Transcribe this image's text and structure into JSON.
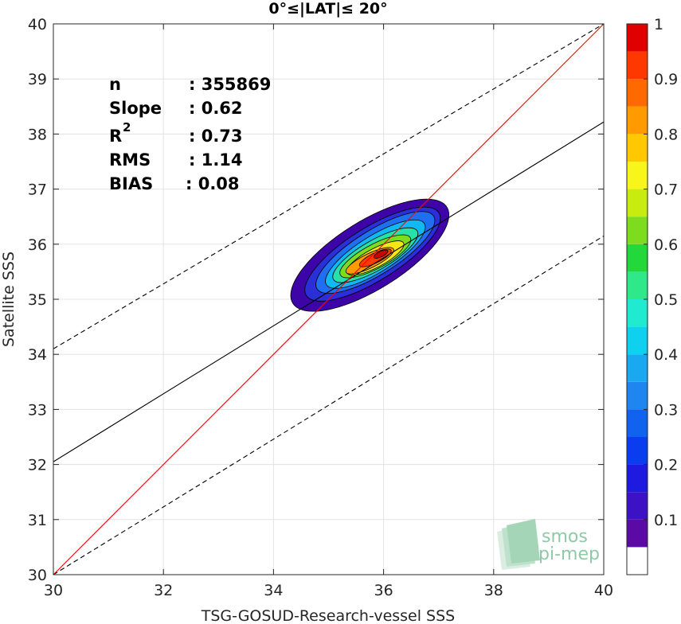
{
  "chart_data": {
    "type": "contour",
    "title": "0°≤|LAT|≤ 20°",
    "xlabel": "TSG-GOSUD-Research-vessel SSS",
    "ylabel": "Satellite SSS",
    "xlim": [
      30,
      40
    ],
    "ylim": [
      30,
      40
    ],
    "xticks": [
      "30",
      "32",
      "34",
      "36",
      "38",
      "40"
    ],
    "yticks": [
      "30",
      "31",
      "32",
      "33",
      "34",
      "35",
      "36",
      "37",
      "38",
      "39",
      "40"
    ],
    "grid": true,
    "stats": {
      "n_label": "n",
      "n_value": ": 355869",
      "slope_label": "Slope",
      "slope_value": ": 0.62",
      "r2_label": "R",
      "r2_sup": "2",
      "r2_value": ": 0.73",
      "rms_label": "RMS",
      "rms_value": ": 1.14",
      "bias_label": "BIAS",
      "bias_value": ": 0.08"
    },
    "lines": {
      "identity": {
        "points": [
          [
            30,
            30
          ],
          [
            40,
            40
          ]
        ],
        "color": "#ff0000"
      },
      "fit": {
        "points": [
          [
            30,
            32.05
          ],
          [
            40,
            38.22
          ]
        ],
        "color": "#000000"
      },
      "upper_bound": {
        "points": [
          [
            30,
            34.1
          ],
          [
            40,
            40
          ]
        ],
        "color": "#000000",
        "dash": true
      },
      "lower_bound": {
        "points": [
          [
            30,
            30
          ],
          [
            40,
            36.15
          ]
        ],
        "color": "#000000",
        "dash": true
      }
    },
    "density_contours": [
      {
        "level": 0.05,
        "color": "#3d05a8",
        "center": [
          35.75,
          35.8
        ],
        "half_major": 1.65,
        "half_minor": 0.62,
        "angle_deg": 32
      },
      {
        "level": 0.15,
        "color": "#2a2fd8",
        "center": [
          35.8,
          35.82
        ],
        "half_major": 1.42,
        "half_minor": 0.48,
        "angle_deg": 32
      },
      {
        "level": 0.25,
        "color": "#1f6ff0",
        "center": [
          35.85,
          35.85
        ],
        "half_major": 1.25,
        "half_minor": 0.4,
        "angle_deg": 32
      },
      {
        "level": 0.35,
        "color": "#12b8f2",
        "center": [
          35.85,
          35.82
        ],
        "half_major": 1.05,
        "half_minor": 0.33,
        "angle_deg": 32
      },
      {
        "level": 0.45,
        "color": "#28e0a8",
        "center": [
          35.85,
          35.8
        ],
        "half_major": 0.88,
        "half_minor": 0.27,
        "angle_deg": 30
      },
      {
        "level": 0.55,
        "color": "#7ddc1e",
        "center": [
          35.85,
          35.78
        ],
        "half_major": 0.72,
        "half_minor": 0.22,
        "angle_deg": 28
      },
      {
        "level": 0.65,
        "color": "#f5e61a",
        "center": [
          35.85,
          35.75
        ],
        "half_major": 0.58,
        "half_minor": 0.17,
        "angle_deg": 28
      },
      {
        "level": 0.75,
        "color": "#ff9a00",
        "center": [
          35.75,
          35.7
        ],
        "half_major": 0.48,
        "half_minor": 0.13,
        "angle_deg": 26
      },
      {
        "level": 0.85,
        "color": "#ff3a00",
        "center": [
          35.85,
          35.75
        ],
        "half_major": 0.32,
        "half_minor": 0.09,
        "angle_deg": 26
      },
      {
        "level": 0.95,
        "color": "#cc0000",
        "center": [
          35.95,
          35.82
        ],
        "half_major": 0.14,
        "half_minor": 0.05,
        "angle_deg": 26
      }
    ],
    "colorbar": {
      "levels": [
        0.0,
        0.05,
        0.1,
        0.15,
        0.2,
        0.25,
        0.3,
        0.35,
        0.4,
        0.45,
        0.5,
        0.55,
        0.6,
        0.65,
        0.7,
        0.75,
        0.8,
        0.85,
        0.9,
        0.95,
        1.0
      ],
      "colors": [
        "#ffffff",
        "#5c0aa6",
        "#3c12c4",
        "#1f1ae0",
        "#0a3cf0",
        "#1262f0",
        "#1f86f0",
        "#1aa8f0",
        "#10d0ef",
        "#20ead0",
        "#2fe88a",
        "#22d83a",
        "#7ddc1e",
        "#c8ec10",
        "#f7f51a",
        "#ffc800",
        "#ff9a00",
        "#ff6a00",
        "#ff3800",
        "#e00000",
        "#8b0000"
      ],
      "tick_values": [
        0.1,
        0.2,
        0.3,
        0.4,
        0.5,
        0.6,
        0.7,
        0.8,
        0.9,
        1
      ],
      "tick_labels": [
        "0.1",
        "0.2",
        "0.3",
        "0.4",
        "0.5",
        "0.6",
        "0.7",
        "0.8",
        "0.9",
        "1"
      ]
    }
  },
  "logo": {
    "line1": "smos",
    "line2": "pi-mep"
  }
}
